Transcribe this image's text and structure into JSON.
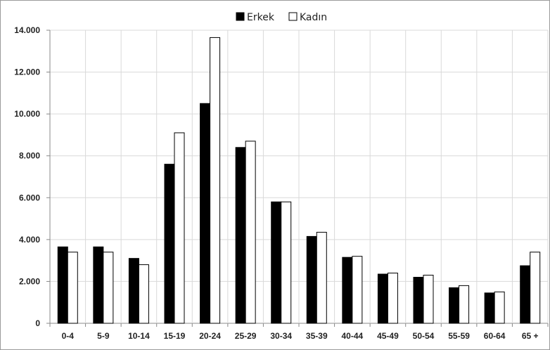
{
  "chart_data": {
    "type": "bar",
    "categories": [
      "0-4",
      "5-9",
      "10-14",
      "15-19",
      "20-24",
      "25-29",
      "30-34",
      "35-39",
      "40-44",
      "45-49",
      "50-54",
      "55-59",
      "60-64",
      "65 +"
    ],
    "series": [
      {
        "name": "Erkek",
        "color": "#000000",
        "values": [
          3650,
          3650,
          3100,
          7600,
          10500,
          8400,
          5800,
          4150,
          3150,
          2350,
          2200,
          1700,
          1450,
          2750
        ]
      },
      {
        "name": "Kadın",
        "color": "#ffffff",
        "values": [
          3400,
          3400,
          2800,
          9100,
          13650,
          8700,
          5800,
          4350,
          3200,
          2400,
          2300,
          1800,
          1500,
          3400
        ]
      }
    ],
    "y_ticks": [
      "0",
      "2.000",
      "4.000",
      "6.000",
      "8.000",
      "10.000",
      "12.000",
      "14.000"
    ],
    "ylim": [
      0,
      14000
    ],
    "grid": true,
    "legend": "top-center"
  }
}
